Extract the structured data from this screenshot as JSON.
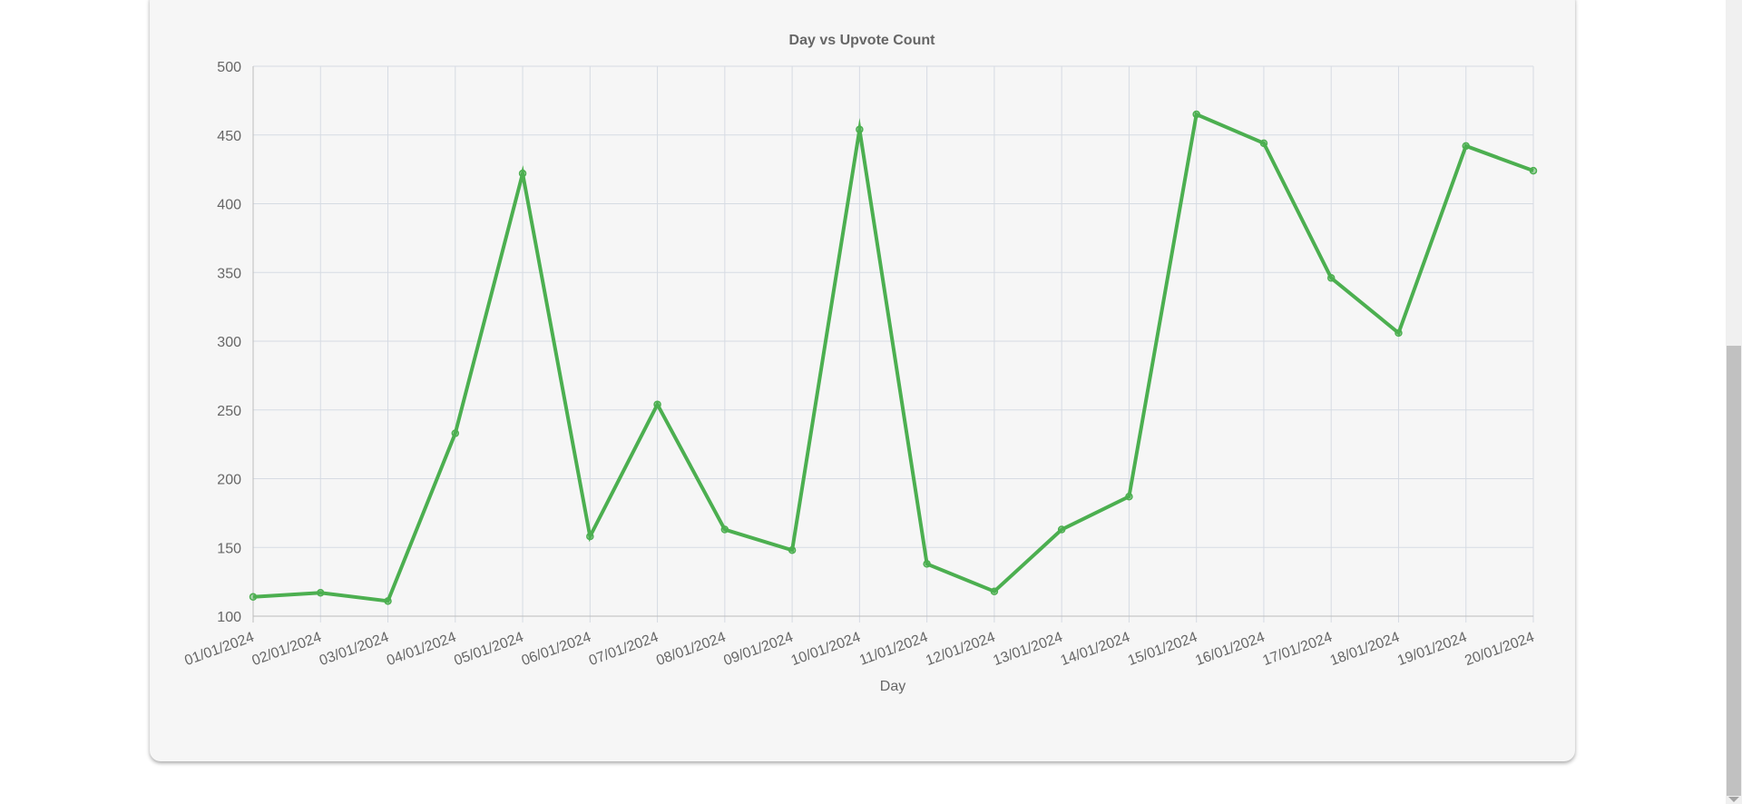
{
  "chart_data": {
    "type": "line",
    "title": "Day vs Upvote Count",
    "xlabel": "Day",
    "ylabel": "",
    "categories": [
      "01/01/2024",
      "02/01/2024",
      "03/01/2024",
      "04/01/2024",
      "05/01/2024",
      "06/01/2024",
      "07/01/2024",
      "08/01/2024",
      "09/01/2024",
      "10/01/2024",
      "11/01/2024",
      "12/01/2024",
      "13/01/2024",
      "14/01/2024",
      "15/01/2024",
      "16/01/2024",
      "17/01/2024",
      "18/01/2024",
      "19/01/2024",
      "20/01/2024"
    ],
    "series": [
      {
        "values": [
          114,
          117,
          111,
          233,
          422,
          158,
          254,
          163,
          148,
          454,
          138,
          118,
          163,
          187,
          465,
          444,
          346,
          306,
          442,
          424
        ],
        "color": "#4caf50"
      }
    ],
    "ylim": [
      100,
      500
    ],
    "yticks": [
      100,
      150,
      200,
      250,
      300,
      350,
      400,
      450,
      500
    ],
    "grid": true,
    "legend": "none"
  },
  "colors": {
    "line": "#4caf50",
    "grid": "#d6dbe3",
    "axis": "#bcbcbc",
    "text": "#666666"
  }
}
